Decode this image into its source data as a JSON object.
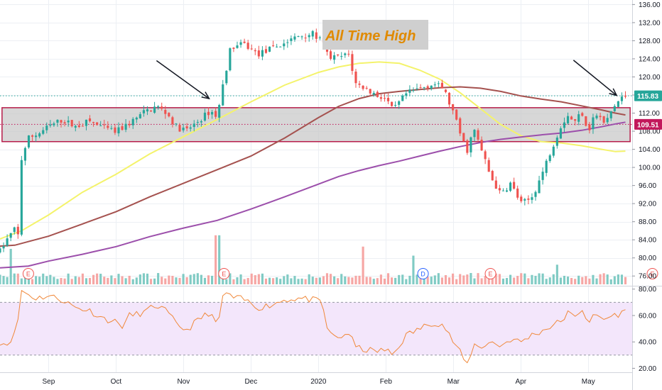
{
  "chart_data": {
    "type": "candlestick",
    "annotation": "All Time High",
    "y_axis_ticks": [
      "136.00",
      "132.00",
      "128.00",
      "124.00",
      "120.00",
      "116.00",
      "112.00",
      "108.00",
      "104.00",
      "100.00",
      "96.00",
      "92.00",
      "88.00",
      "84.00",
      "80.00",
      "76.00"
    ],
    "y_range": [
      74.0,
      137.0
    ],
    "price_labels": [
      {
        "text": "115.83",
        "value": 115.83,
        "color": "#26a69a"
      },
      {
        "text": "109.51",
        "value": 109.51,
        "color": "#c2185b"
      }
    ],
    "x_axis_labels": [
      {
        "text": "Sep",
        "month": 0
      },
      {
        "text": "Oct",
        "month": 1
      },
      {
        "text": "Nov",
        "month": 2
      },
      {
        "text": "Dec",
        "month": 3
      },
      {
        "text": "2020",
        "month": 4
      },
      {
        "text": "Feb",
        "month": 5
      },
      {
        "text": "Mar",
        "month": 6
      },
      {
        "text": "Apr",
        "month": 7
      },
      {
        "text": "May",
        "month": 8
      }
    ],
    "x_range_months": [
      -0.72,
      8.65
    ],
    "consolidation_box": {
      "y_low": 105.7,
      "y_high": 113.2,
      "from_month": -0.69,
      "to_month": 8.62
    },
    "horizontal_lines": [
      {
        "value": 115.83,
        "style": "dotted",
        "color": "#26a69a"
      },
      {
        "value": 109.51,
        "style": "dotted",
        "color": "#c2185b"
      }
    ],
    "arrows": [
      {
        "from_month": 1.6,
        "from_value": 123.6,
        "to_month": 2.38,
        "to_value": 115.2
      },
      {
        "from_month": 7.78,
        "from_value": 123.7,
        "to_month": 8.42,
        "to_value": 115.9
      }
    ],
    "moving_averages": [
      {
        "color": "#f4f36b",
        "points": [
          [
            -0.72,
            84.2
          ],
          [
            -0.4,
            86
          ],
          [
            0,
            89.5
          ],
          [
            0.5,
            94.5
          ],
          [
            1,
            98.5
          ],
          [
            1.5,
            103
          ],
          [
            2,
            106.8
          ],
          [
            2.5,
            110.6
          ],
          [
            3,
            114.5
          ],
          [
            3.5,
            118.2
          ],
          [
            4,
            121
          ],
          [
            4.3,
            122.2
          ],
          [
            4.6,
            123
          ],
          [
            4.9,
            123.3
          ],
          [
            5.2,
            123
          ],
          [
            5.5,
            121.5
          ],
          [
            5.8,
            119.5
          ],
          [
            6.1,
            116.5
          ],
          [
            6.4,
            113
          ],
          [
            6.7,
            109.5
          ],
          [
            7,
            107
          ],
          [
            7.3,
            105.7
          ],
          [
            7.6,
            105.4
          ],
          [
            7.9,
            104.8
          ],
          [
            8.2,
            104
          ],
          [
            8.4,
            103.5
          ],
          [
            8.55,
            103.6
          ]
        ]
      },
      {
        "color": "#a5524f",
        "points": [
          [
            -0.72,
            82.6
          ],
          [
            -0.5,
            82.8
          ],
          [
            0,
            84.8
          ],
          [
            0.5,
            87.5
          ],
          [
            1,
            90.2
          ],
          [
            1.5,
            93.5
          ],
          [
            2,
            96.5
          ],
          [
            2.5,
            99.5
          ],
          [
            3,
            102.5
          ],
          [
            3.5,
            106.5
          ],
          [
            4,
            111
          ],
          [
            4.3,
            113.5
          ],
          [
            4.6,
            115.2
          ],
          [
            4.9,
            116.3
          ],
          [
            5.2,
            116.8
          ],
          [
            5.5,
            117.2
          ],
          [
            5.8,
            117.6
          ],
          [
            6.1,
            117.8
          ],
          [
            6.4,
            117.5
          ],
          [
            6.7,
            116.8
          ],
          [
            7,
            115.8
          ],
          [
            7.3,
            115.1
          ],
          [
            7.6,
            114.5
          ],
          [
            7.9,
            113.6
          ],
          [
            8.2,
            112.7
          ],
          [
            8.4,
            112
          ],
          [
            8.55,
            111.6
          ]
        ]
      },
      {
        "color": "#9c4fab",
        "points": [
          [
            -0.72,
            77.8
          ],
          [
            -0.3,
            78.2
          ],
          [
            0,
            79.3
          ],
          [
            0.5,
            80.8
          ],
          [
            1,
            82.5
          ],
          [
            1.5,
            84.7
          ],
          [
            2,
            86.6
          ],
          [
            2.5,
            88.3
          ],
          [
            3,
            90.8
          ],
          [
            3.5,
            93.5
          ],
          [
            4,
            96.3
          ],
          [
            4.3,
            98
          ],
          [
            4.6,
            99.3
          ],
          [
            4.9,
            100.4
          ],
          [
            5.2,
            101.4
          ],
          [
            5.5,
            102.5
          ],
          [
            5.8,
            103.6
          ],
          [
            6.1,
            104.6
          ],
          [
            6.4,
            105.5
          ],
          [
            6.7,
            106.2
          ],
          [
            7,
            106.7
          ],
          [
            7.3,
            107.2
          ],
          [
            7.6,
            107.6
          ],
          [
            7.9,
            108.2
          ],
          [
            8.2,
            109
          ],
          [
            8.4,
            109.6
          ],
          [
            8.55,
            110
          ]
        ]
      }
    ],
    "candle_path": [
      [
        -0.72,
        81.5
      ],
      [
        -0.62,
        84
      ],
      [
        -0.52,
        86
      ],
      [
        -0.48,
        87
      ],
      [
        -0.44,
        84
      ],
      [
        -0.4,
        102
      ],
      [
        -0.3,
        106.5
      ],
      [
        -0.15,
        107.5
      ],
      [
        0,
        109
      ],
      [
        0.2,
        110.5
      ],
      [
        0.4,
        109
      ],
      [
        0.6,
        110.2
      ],
      [
        0.8,
        108.8
      ],
      [
        1,
        107.8
      ],
      [
        1.2,
        109.8
      ],
      [
        1.4,
        112
      ],
      [
        1.6,
        113.5
      ],
      [
        1.75,
        112
      ],
      [
        1.9,
        108.8
      ],
      [
        2.05,
        108.2
      ],
      [
        2.2,
        110
      ],
      [
        2.4,
        112.5
      ],
      [
        2.5,
        111.2
      ],
      [
        2.6,
        119.5
      ],
      [
        2.7,
        126.5
      ],
      [
        2.9,
        127.2
      ],
      [
        3.1,
        125
      ],
      [
        3.3,
        126.2
      ],
      [
        3.5,
        127.5
      ],
      [
        3.7,
        129
      ],
      [
        3.9,
        129.6
      ],
      [
        4.05,
        128
      ],
      [
        4.15,
        124.3
      ],
      [
        4.3,
        124.3
      ],
      [
        4.45,
        125
      ],
      [
        4.55,
        118.5
      ],
      [
        4.7,
        117.5
      ],
      [
        4.85,
        116
      ],
      [
        5,
        115.2
      ],
      [
        5.1,
        112.5
      ],
      [
        5.3,
        116.2
      ],
      [
        5.5,
        117.5
      ],
      [
        5.7,
        118.5
      ],
      [
        5.85,
        117.5
      ],
      [
        6,
        112
      ],
      [
        6.1,
        107.5
      ],
      [
        6.2,
        103.5
      ],
      [
        6.3,
        108.5
      ],
      [
        6.4,
        104.5
      ],
      [
        6.55,
        98
      ],
      [
        6.7,
        94
      ],
      [
        6.85,
        96.5
      ],
      [
        7,
        92
      ],
      [
        7.15,
        93
      ],
      [
        7.3,
        98
      ],
      [
        7.45,
        104
      ],
      [
        7.6,
        109.5
      ],
      [
        7.7,
        111.5
      ],
      [
        7.8,
        110
      ],
      [
        7.9,
        112.5
      ],
      [
        8.0,
        108
      ],
      [
        8.1,
        112
      ],
      [
        8.25,
        109.5
      ],
      [
        8.35,
        112.8
      ],
      [
        8.45,
        114.7
      ],
      [
        8.55,
        115.8
      ]
    ],
    "volume_spikes": [
      [
        -0.55,
        82
      ],
      [
        2.5,
        85
      ],
      [
        4.65,
        82.5
      ],
      [
        7.55,
        78.5
      ],
      [
        5.4,
        80.5
      ]
    ],
    "event_markers": [
      {
        "letter": "E",
        "month": -0.3,
        "color": "#ef5350"
      },
      {
        "letter": "E",
        "month": 2.6,
        "color": "#ef5350"
      },
      {
        "letter": "D",
        "month": 5.55,
        "color": "#2962ff"
      },
      {
        "letter": "E",
        "month": 6.55,
        "color": "#ef5350"
      },
      {
        "letter": "E",
        "month": 8.95,
        "color": "#ef5350"
      }
    ],
    "rsi": {
      "ticks": [
        "80.00",
        "60.00",
        "40.00",
        "20.00"
      ],
      "y_range": [
        17.0,
        82.0
      ],
      "band": [
        30,
        70
      ],
      "color": "#f0883a",
      "band_color": "#f3e6fb",
      "series": [
        [
          -0.72,
          40
        ],
        [
          -0.62,
          38
        ],
        [
          -0.52,
          45
        ],
        [
          -0.48,
          47
        ],
        [
          -0.4,
          79
        ],
        [
          -0.3,
          76
        ],
        [
          -0.2,
          73
        ],
        [
          0,
          75
        ],
        [
          0.2,
          72
        ],
        [
          0.4,
          66
        ],
        [
          0.6,
          64
        ],
        [
          0.8,
          58
        ],
        [
          1,
          55
        ],
        [
          1.1,
          52
        ],
        [
          1.2,
          60
        ],
        [
          1.4,
          62
        ],
        [
          1.6,
          68
        ],
        [
          1.75,
          63
        ],
        [
          1.9,
          53
        ],
        [
          2.05,
          49
        ],
        [
          2.2,
          56
        ],
        [
          2.4,
          63
        ],
        [
          2.5,
          50
        ],
        [
          2.6,
          79
        ],
        [
          2.7,
          74
        ],
        [
          2.9,
          72
        ],
        [
          3.1,
          66
        ],
        [
          3.3,
          68
        ],
        [
          3.5,
          72
        ],
        [
          3.7,
          73
        ],
        [
          3.9,
          72
        ],
        [
          4.05,
          70
        ],
        [
          4.15,
          46
        ],
        [
          4.3,
          43
        ],
        [
          4.45,
          47
        ],
        [
          4.55,
          36
        ],
        [
          4.7,
          34
        ],
        [
          4.85,
          33
        ],
        [
          5,
          34
        ],
        [
          5.1,
          30
        ],
        [
          5.3,
          45
        ],
        [
          5.5,
          50
        ],
        [
          5.7,
          55
        ],
        [
          5.85,
          53
        ],
        [
          6,
          40
        ],
        [
          6.1,
          32
        ],
        [
          6.2,
          22
        ],
        [
          6.3,
          38
        ],
        [
          6.4,
          36
        ],
        [
          6.55,
          40
        ],
        [
          6.7,
          37
        ],
        [
          6.85,
          42
        ],
        [
          7,
          40
        ],
        [
          7.15,
          45
        ],
        [
          7.3,
          48
        ],
        [
          7.45,
          52
        ],
        [
          7.6,
          56
        ],
        [
          7.7,
          62
        ],
        [
          7.8,
          58
        ],
        [
          7.9,
          66
        ],
        [
          8.0,
          55
        ],
        [
          8.1,
          60
        ],
        [
          8.25,
          57
        ],
        [
          8.35,
          60
        ],
        [
          8.45,
          61
        ],
        [
          8.55,
          63
        ]
      ]
    }
  },
  "colors": {
    "up": "#26a69a",
    "down": "#ef5350",
    "volume_up": "#80cbc4",
    "volume_down": "#f6a6a4",
    "box_fill": "#c8c8c8",
    "box_border": "#b71c4a",
    "annotation_bg": "#cfcfcf",
    "annotation_text": "#e08a00",
    "axis_text": "#131722",
    "grid": "#eceff4"
  }
}
